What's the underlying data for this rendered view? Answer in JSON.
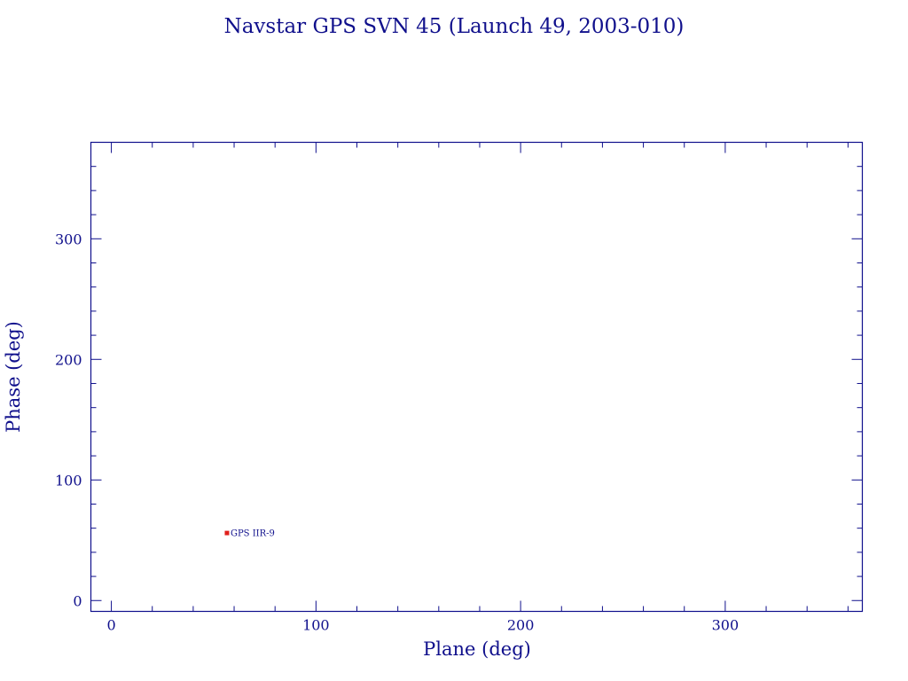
{
  "chart_data": {
    "type": "scatter",
    "title": "Navstar GPS SVN 45 (Launch 49, 2003-010)",
    "xlabel": "Plane (deg)",
    "ylabel": "Phase (deg)",
    "xlim": [
      -10,
      367
    ],
    "ylim": [
      -9,
      380
    ],
    "x_major_ticks": [
      0,
      100,
      200,
      300
    ],
    "x_minor_step": 20,
    "y_major_ticks": [
      0,
      100,
      200,
      300
    ],
    "y_minor_step": 20,
    "x_tick_labels": [
      "0",
      "100",
      "200",
      "300"
    ],
    "y_tick_labels": [
      "0",
      "100",
      "200",
      "300"
    ],
    "points": [
      {
        "x": 56.5,
        "y": 56,
        "label": "GPS IIR-9",
        "color": "#e0201c"
      }
    ],
    "colors": {
      "axes": "#10108c",
      "marker": "#e0201c"
    }
  }
}
